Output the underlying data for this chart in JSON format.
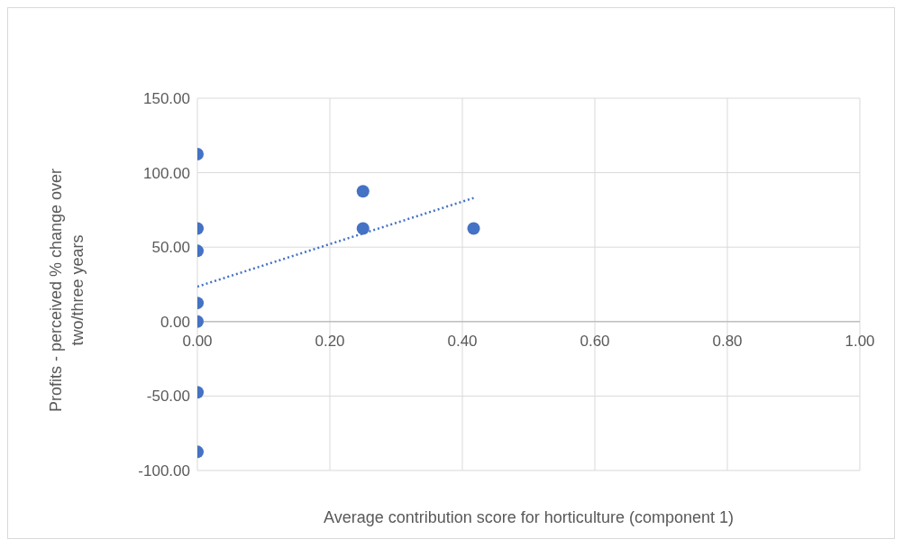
{
  "chart_data": {
    "type": "scatter",
    "xlabel": "Average contribution score for horticulture (component 1)",
    "ylabel": "Profits - perceived % change over two/three years",
    "series": [
      {
        "color": "#4472c4",
        "x": [
          0,
          0,
          0,
          0,
          0,
          0,
          0,
          0.25,
          0.25,
          0.417
        ],
        "values": [
          112.5,
          62.5,
          47.5,
          12.5,
          0,
          -47.5,
          -87.5,
          87.5,
          62.5,
          62.5
        ],
        "marker": "circle"
      },
      {
        "type": "line",
        "color": "#4472c4",
        "x": [
          0,
          0.417
        ],
        "values": [
          23.5,
          83
        ],
        "line_style": "dotted",
        "marker": "none"
      }
    ],
    "xlim": [
      0,
      1
    ],
    "xticks": [
      {
        "value": 0,
        "label": "0.00"
      },
      {
        "value": 0.2,
        "label": "0.20"
      },
      {
        "value": 0.4,
        "label": "0.40"
      },
      {
        "value": 0.6,
        "label": "0.60"
      },
      {
        "value": 0.8,
        "label": "0.80"
      },
      {
        "value": 1,
        "label": "1.00"
      }
    ],
    "ylim": [
      -100,
      150
    ],
    "yticks": [
      {
        "value": -100,
        "label": "-100.00"
      },
      {
        "value": -50,
        "label": "-50.00"
      },
      {
        "value": 0,
        "label": "0.00"
      },
      {
        "value": 50,
        "label": "50.00"
      },
      {
        "value": 100,
        "label": "100.00"
      },
      {
        "value": 150,
        "label": "150.00"
      }
    ],
    "grid": true,
    "legend": false
  }
}
